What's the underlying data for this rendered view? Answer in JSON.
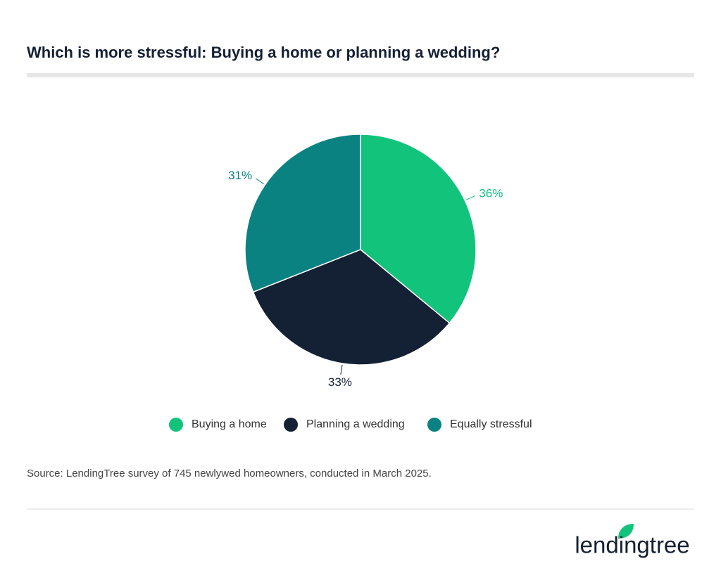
{
  "chart_data": {
    "type": "pie",
    "title": "Which is more stressful: Buying a home or planning a wedding?",
    "categories": [
      "Buying a home",
      "Planning a wedding",
      "Equally stressful"
    ],
    "values": [
      36,
      33,
      31
    ],
    "value_labels": [
      "36%",
      "33%",
      "31%"
    ],
    "colors": [
      "#12c47b",
      "#142033",
      "#0b8282"
    ],
    "legend": "bottom",
    "source": "Source: LendingTree survey of 745 newlywed homeowners, conducted in March 2025.",
    "brand": "lendingtree"
  }
}
